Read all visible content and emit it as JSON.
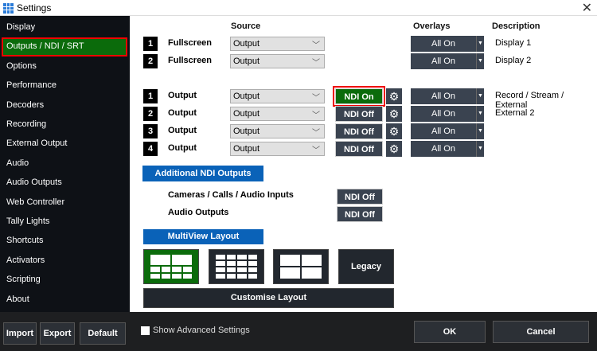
{
  "window": {
    "title": "Settings",
    "close": "✕"
  },
  "sidebar": {
    "items": [
      {
        "label": "Display"
      },
      {
        "label": "Outputs / NDI / SRT",
        "selected": true
      },
      {
        "label": "Options"
      },
      {
        "label": "Performance"
      },
      {
        "label": "Decoders"
      },
      {
        "label": "Recording"
      },
      {
        "label": "External Output"
      },
      {
        "label": "Audio"
      },
      {
        "label": "Audio Outputs"
      },
      {
        "label": "Web Controller"
      },
      {
        "label": "Tally Lights"
      },
      {
        "label": "Shortcuts"
      },
      {
        "label": "Activators"
      },
      {
        "label": "Scripting"
      },
      {
        "label": "About"
      }
    ]
  },
  "headers": {
    "source": "Source",
    "overlays": "Overlays",
    "description": "Description"
  },
  "fullscreen": [
    {
      "num": "1",
      "label": "Fullscreen",
      "source": "Output",
      "overlay": "All On",
      "description": "Display 1"
    },
    {
      "num": "2",
      "label": "Fullscreen",
      "source": "Output",
      "overlay": "All On",
      "description": "Display 2"
    }
  ],
  "outputs": [
    {
      "num": "1",
      "label": "Output",
      "source": "Output",
      "ndi": "NDI On",
      "ndi_on": true,
      "overlay": "All On",
      "description": "Record / Stream / External"
    },
    {
      "num": "2",
      "label": "Output",
      "source": "Output",
      "ndi": "NDI Off",
      "ndi_on": false,
      "overlay": "All On",
      "description": "External 2"
    },
    {
      "num": "3",
      "label": "Output",
      "source": "Output",
      "ndi": "NDI Off",
      "ndi_on": false,
      "overlay": "All On",
      "description": ""
    },
    {
      "num": "4",
      "label": "Output",
      "source": "Output",
      "ndi": "NDI Off",
      "ndi_on": false,
      "overlay": "All On",
      "description": ""
    }
  ],
  "additional_ndi": {
    "title": "Additional NDI Outputs",
    "items": [
      {
        "label": "Cameras / Calls / Audio Inputs",
        "ndi": "NDI Off"
      },
      {
        "label": "Audio Outputs",
        "ndi": "NDI Off"
      }
    ]
  },
  "multiview": {
    "title": "MultiView Layout",
    "selected_index": 0,
    "legacy": "Legacy",
    "customise": "Customise Layout"
  },
  "footer": {
    "show_advanced": "Show Advanced Settings",
    "show_advanced_checked": false,
    "import": "Import",
    "export": "Export",
    "default": "Default",
    "ok": "OK",
    "cancel": "Cancel"
  },
  "colors": {
    "accent_green": "#0b6b0b",
    "accent_blue": "#0a62b8",
    "highlight_red": "#e00000"
  }
}
